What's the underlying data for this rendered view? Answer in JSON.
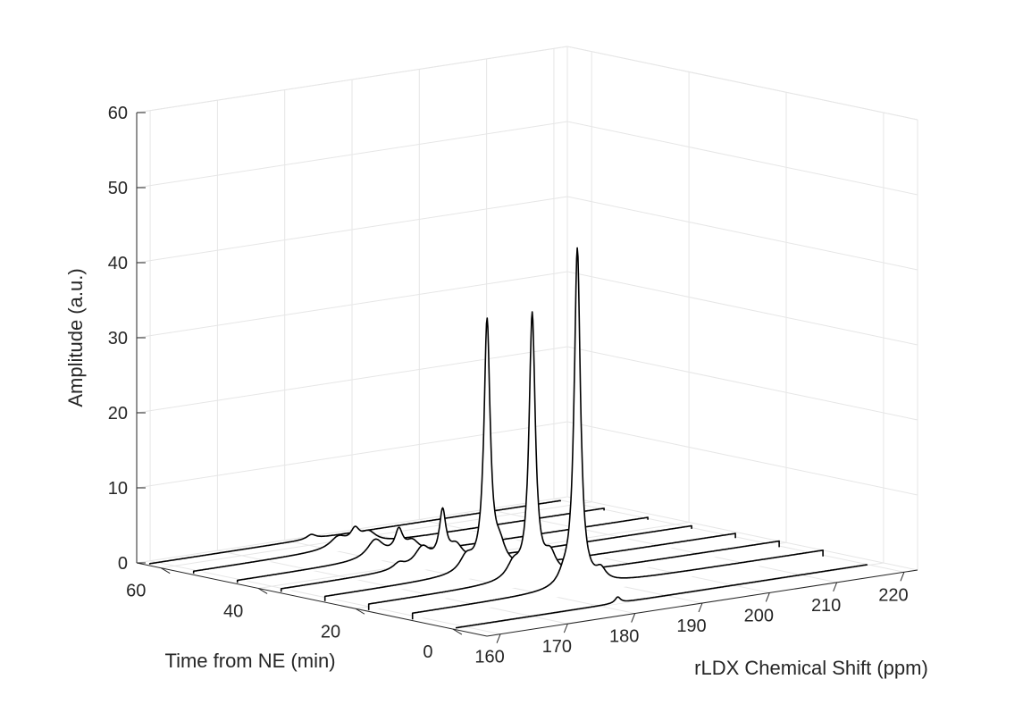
{
  "chart_data": {
    "type": "line",
    "style": "waterfall-3d",
    "title": "",
    "xlabel": "rLDX Chemical Shift (ppm)",
    "ylabel": "Time from NE (min)",
    "zlabel": "Amplitude (a.u.)",
    "xlim": [
      158,
      222
    ],
    "ylim": [
      -7,
      65
    ],
    "zlim": [
      0,
      60
    ],
    "xticks": [
      160,
      170,
      180,
      190,
      200,
      210,
      220
    ],
    "yticks": [
      0,
      20,
      40,
      60
    ],
    "zticks": [
      0,
      10,
      20,
      30,
      40,
      50,
      60
    ],
    "grid": true,
    "line_color": "#000000",
    "series": [
      {
        "time": 0,
        "baseline": 0.1,
        "peaks": [
          {
            "ppm": 182.5,
            "amp": 0.8,
            "width": 0.5
          }
        ]
      },
      {
        "time": 9,
        "baseline": 0.8,
        "peaks": [
          {
            "ppm": 183.0,
            "amp": 45.0,
            "width": 0.55
          },
          {
            "ppm": 186.5,
            "amp": 1.5,
            "width": 0.9
          },
          {
            "ppm": 181.0,
            "amp": 1.2,
            "width": 1.0
          }
        ]
      },
      {
        "time": 18,
        "baseline": 0.8,
        "peaks": [
          {
            "ppm": 182.8,
            "amp": 35.0,
            "width": 0.55
          },
          {
            "ppm": 185.5,
            "amp": 2.5,
            "width": 1.0
          },
          {
            "ppm": 180.0,
            "amp": 2.0,
            "width": 1.2
          }
        ]
      },
      {
        "time": 27,
        "baseline": 0.6,
        "peaks": [
          {
            "ppm": 182.6,
            "amp": 33.0,
            "width": 0.55
          },
          {
            "ppm": 184.5,
            "amp": 2.5,
            "width": 1.0
          },
          {
            "ppm": 179.5,
            "amp": 2.0,
            "width": 1.2
          }
        ]
      },
      {
        "time": 36,
        "baseline": 0.4,
        "peaks": [
          {
            "ppm": 182.5,
            "amp": 6.5,
            "width": 0.6
          },
          {
            "ppm": 184.5,
            "amp": 2.0,
            "width": 1.2
          },
          {
            "ppm": 179.5,
            "amp": 2.5,
            "width": 1.4
          },
          {
            "ppm": 176.0,
            "amp": 0.8,
            "width": 1.0
          }
        ]
      },
      {
        "time": 45,
        "baseline": 0.3,
        "peaks": [
          {
            "ppm": 182.5,
            "amp": 3.0,
            "width": 0.7
          },
          {
            "ppm": 184.5,
            "amp": 1.5,
            "width": 1.2
          },
          {
            "ppm": 179.0,
            "amp": 2.5,
            "width": 1.5
          }
        ]
      },
      {
        "time": 54,
        "baseline": 0.3,
        "peaks": [
          {
            "ppm": 182.5,
            "amp": 1.8,
            "width": 0.8
          },
          {
            "ppm": 184.5,
            "amp": 1.5,
            "width": 1.4
          },
          {
            "ppm": 180.0,
            "amp": 1.5,
            "width": 1.5
          }
        ]
      },
      {
        "time": 63,
        "baseline": 0.1,
        "peaks": [
          {
            "ppm": 182.5,
            "amp": 0.6,
            "width": 0.8
          }
        ]
      }
    ]
  }
}
